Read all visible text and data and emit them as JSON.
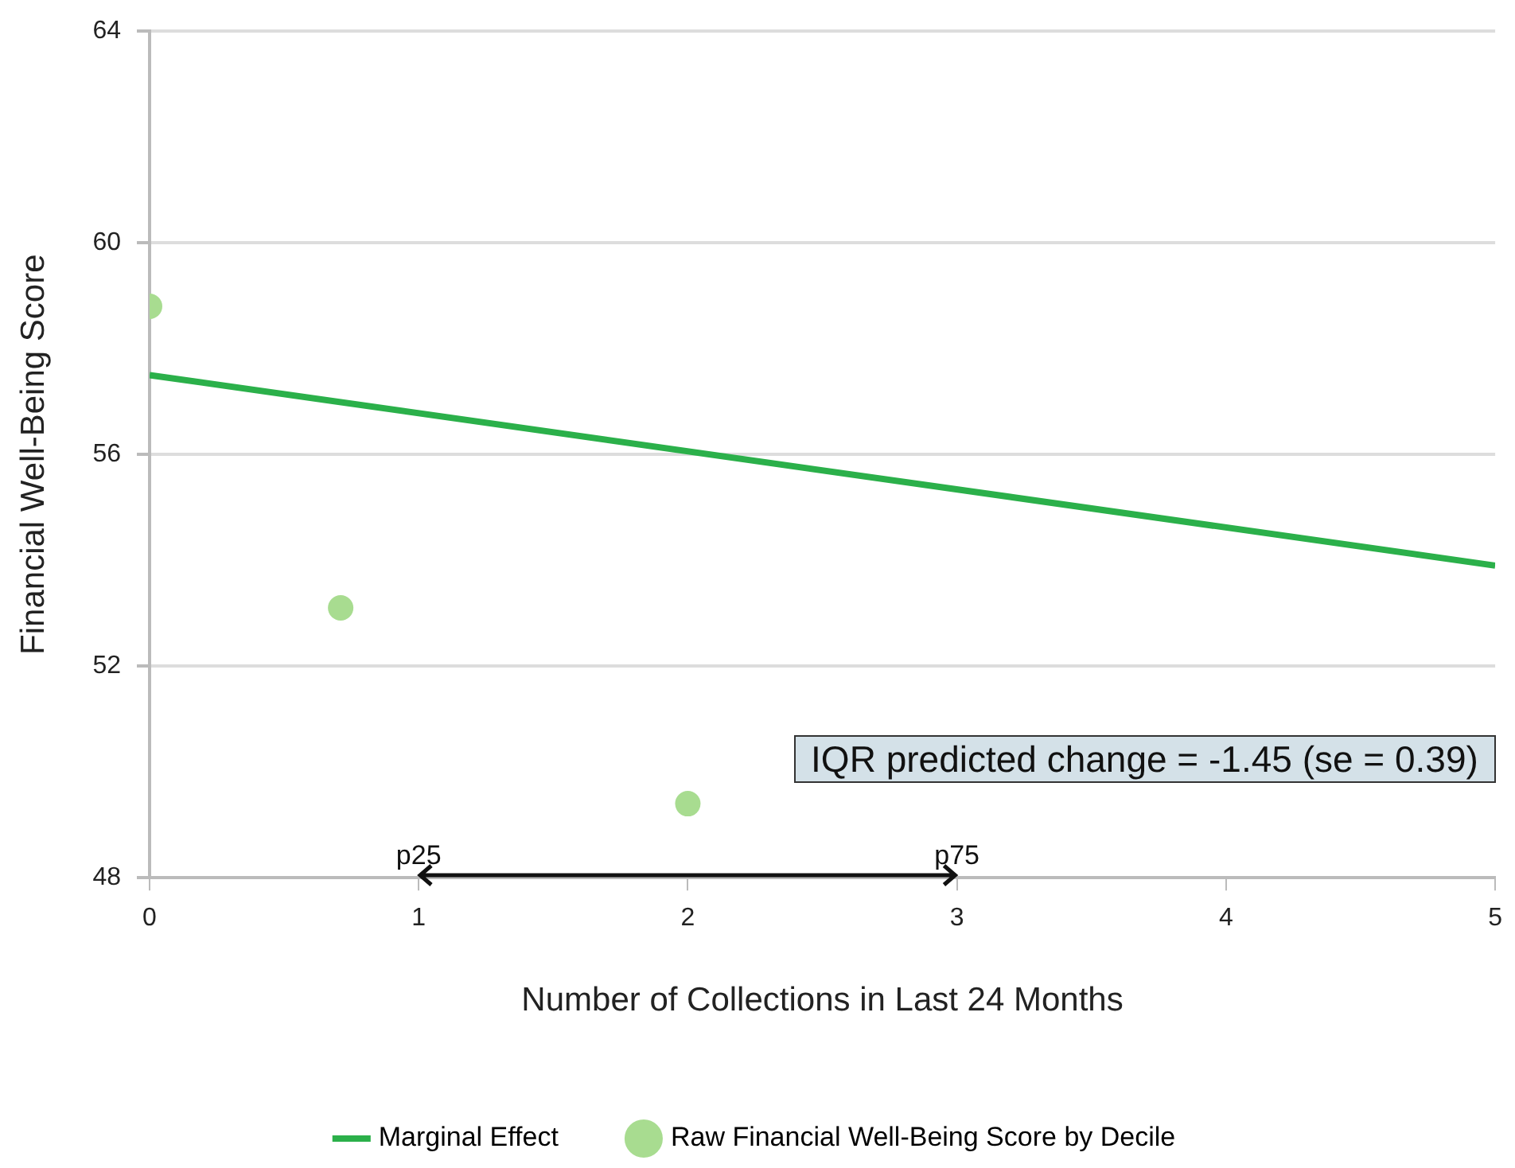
{
  "chart_data": {
    "type": "line",
    "xlabel": "Number of Collections in Last 24 Months",
    "ylabel": "Financial Well-Being Score",
    "series": [
      {
        "name": "Marginal Effect",
        "color": "#2bb04a",
        "x": [
          0,
          5
        ],
        "values": [
          57.5,
          53.9
        ],
        "marker": "none"
      },
      {
        "name": "Raw Financial Well-Being Score by Decile",
        "type": "scatter",
        "color": "#a8dc90",
        "x": [
          0,
          0.71,
          2
        ],
        "values": [
          58.8,
          53.1,
          49.4
        ],
        "marker": "circle"
      }
    ],
    "xlim": [
      0,
      5
    ],
    "xticks": [
      0,
      1,
      2,
      3,
      4,
      5
    ],
    "ylim": [
      48,
      64
    ],
    "yticks": [
      48,
      52,
      56,
      60,
      64
    ],
    "grid": "y",
    "legend": "bottom",
    "annotations": [
      "IQR predicted change = -1.45 (se = 0.39)",
      "p25",
      "p75"
    ]
  }
}
